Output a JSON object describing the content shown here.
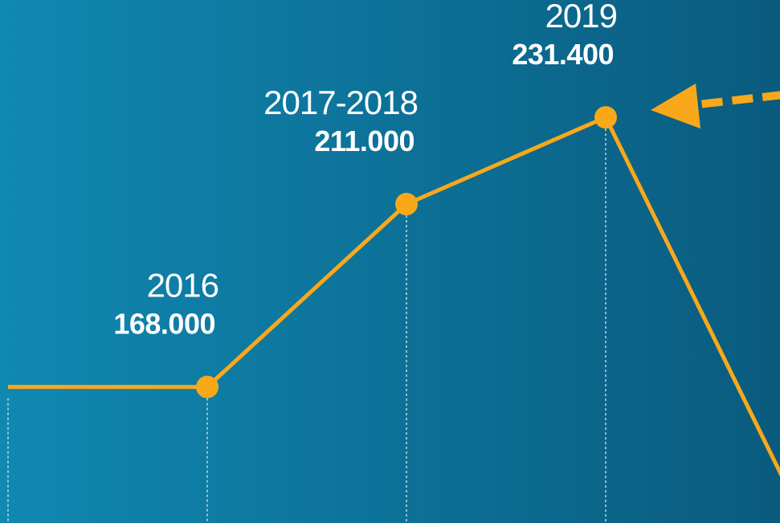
{
  "chart_data": {
    "type": "line",
    "categories": [
      null,
      "2016",
      "2017-2018",
      "2019",
      null
    ],
    "values": [
      168000,
      168000,
      211000,
      231400,
      136000
    ],
    "value_labels": [
      null,
      "168.000",
      "211.000",
      "231.400",
      null
    ],
    "color": "#f9a81a",
    "ylim": [
      136000,
      259000
    ]
  }
}
